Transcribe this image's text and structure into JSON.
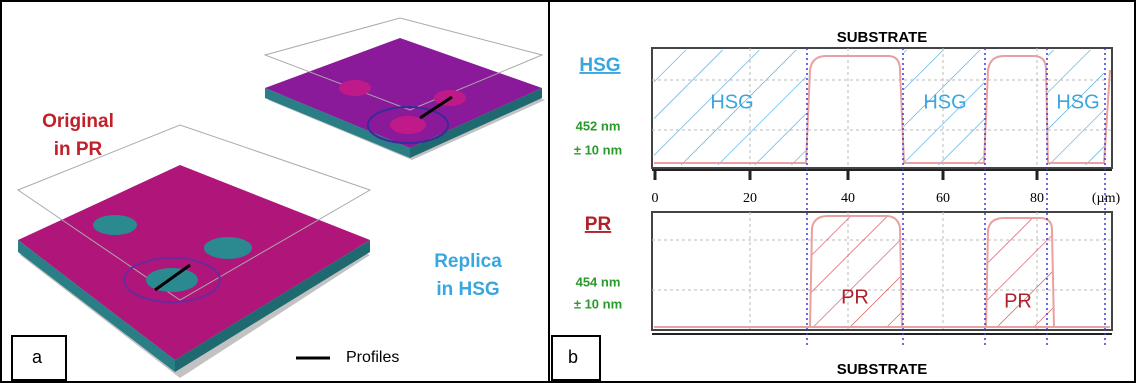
{
  "panel_a": {
    "label": "a",
    "original_label": [
      "Original",
      "in PR"
    ],
    "replica_label": [
      "Replica",
      "in HSG"
    ],
    "legend": "Profiles"
  },
  "panel_b": {
    "label": "b",
    "substrate_top": "SUBSTRATE",
    "substrate_bottom": "SUBSTRATE",
    "hsg_plot": {
      "title": "HSG",
      "thickness": "452 nm",
      "tolerance": "± 10 nm",
      "region_labels": [
        "HSG",
        "HSG",
        "HSG"
      ]
    },
    "pr_plot": {
      "title": "PR",
      "thickness": "454 nm",
      "tolerance": "± 10 nm",
      "region_labels": [
        "PR",
        "PR"
      ]
    },
    "x_axis": {
      "ticks": [
        0,
        20,
        40,
        60,
        80
      ],
      "unit": "(µm)"
    }
  }
}
